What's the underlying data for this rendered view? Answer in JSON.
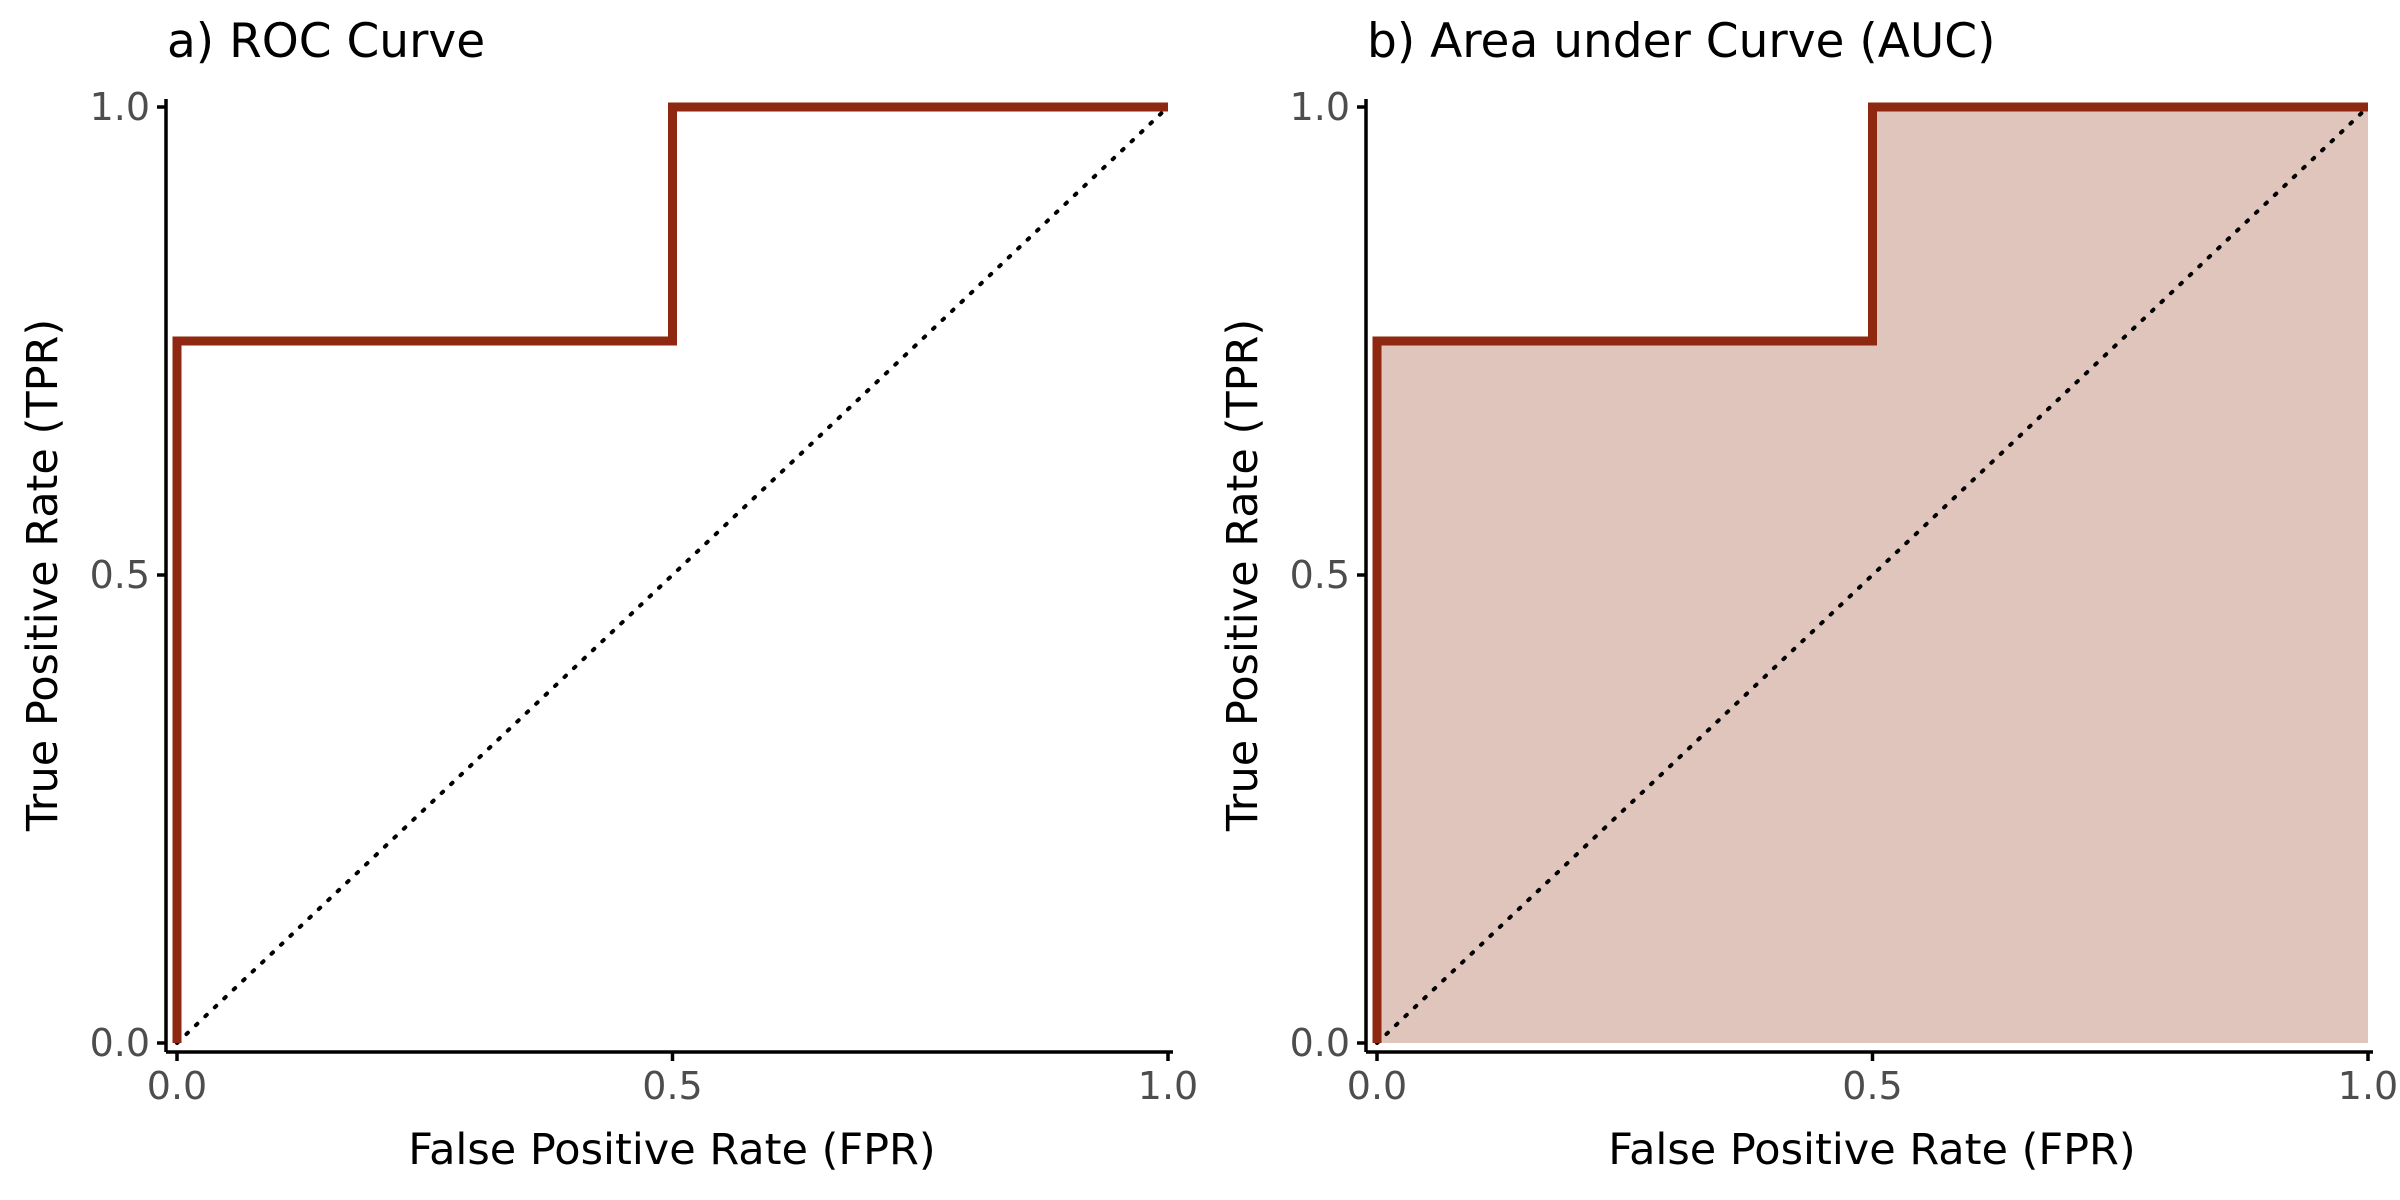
{
  "chart_data": [
    {
      "type": "line",
      "title": "a) ROC Curve",
      "xlabel": "False Positive Rate (FPR)",
      "ylabel": "True Positive Rate (TPR)",
      "xlim": [
        0,
        1
      ],
      "ylim": [
        0,
        1
      ],
      "xticks": [
        0,
        0.5,
        1
      ],
      "xtick_labels": [
        "0.0",
        "0.5",
        "1.0"
      ],
      "yticks": [
        0,
        0.5,
        1
      ],
      "ytick_labels": [
        "0.0",
        "0.5",
        "1.0"
      ],
      "grid": false,
      "fill_under_curve": false,
      "series": [
        {
          "step": true,
          "color": "#8f2811",
          "x": [
            0,
            0,
            0.5,
            0.5,
            1
          ],
          "y": [
            0,
            0.75,
            0.75,
            1,
            1
          ]
        }
      ],
      "reference_line": {
        "style": "dotted",
        "color": "#000000",
        "x": [
          0,
          1
        ],
        "y": [
          0,
          1
        ]
      }
    },
    {
      "type": "area",
      "title": "b) Area under Curve (AUC)",
      "xlabel": "False Positive Rate (FPR)",
      "ylabel": "True Positive Rate (TPR)",
      "xlim": [
        0,
        1
      ],
      "ylim": [
        0,
        1
      ],
      "xticks": [
        0,
        0.5,
        1
      ],
      "xtick_labels": [
        "0.0",
        "0.5",
        "1.0"
      ],
      "yticks": [
        0,
        0.5,
        1
      ],
      "ytick_labels": [
        "0.0",
        "0.5",
        "1.0"
      ],
      "grid": false,
      "fill_under_curve": true,
      "fill_color": "#e0c5bc",
      "series": [
        {
          "step": true,
          "color": "#8f2811",
          "x": [
            0,
            0,
            0.5,
            0.5,
            1
          ],
          "y": [
            0,
            0.75,
            0.75,
            1,
            1
          ]
        }
      ],
      "reference_line": {
        "style": "dotted",
        "color": "#000000",
        "x": [
          0,
          1
        ],
        "y": [
          0,
          1
        ]
      }
    }
  ]
}
